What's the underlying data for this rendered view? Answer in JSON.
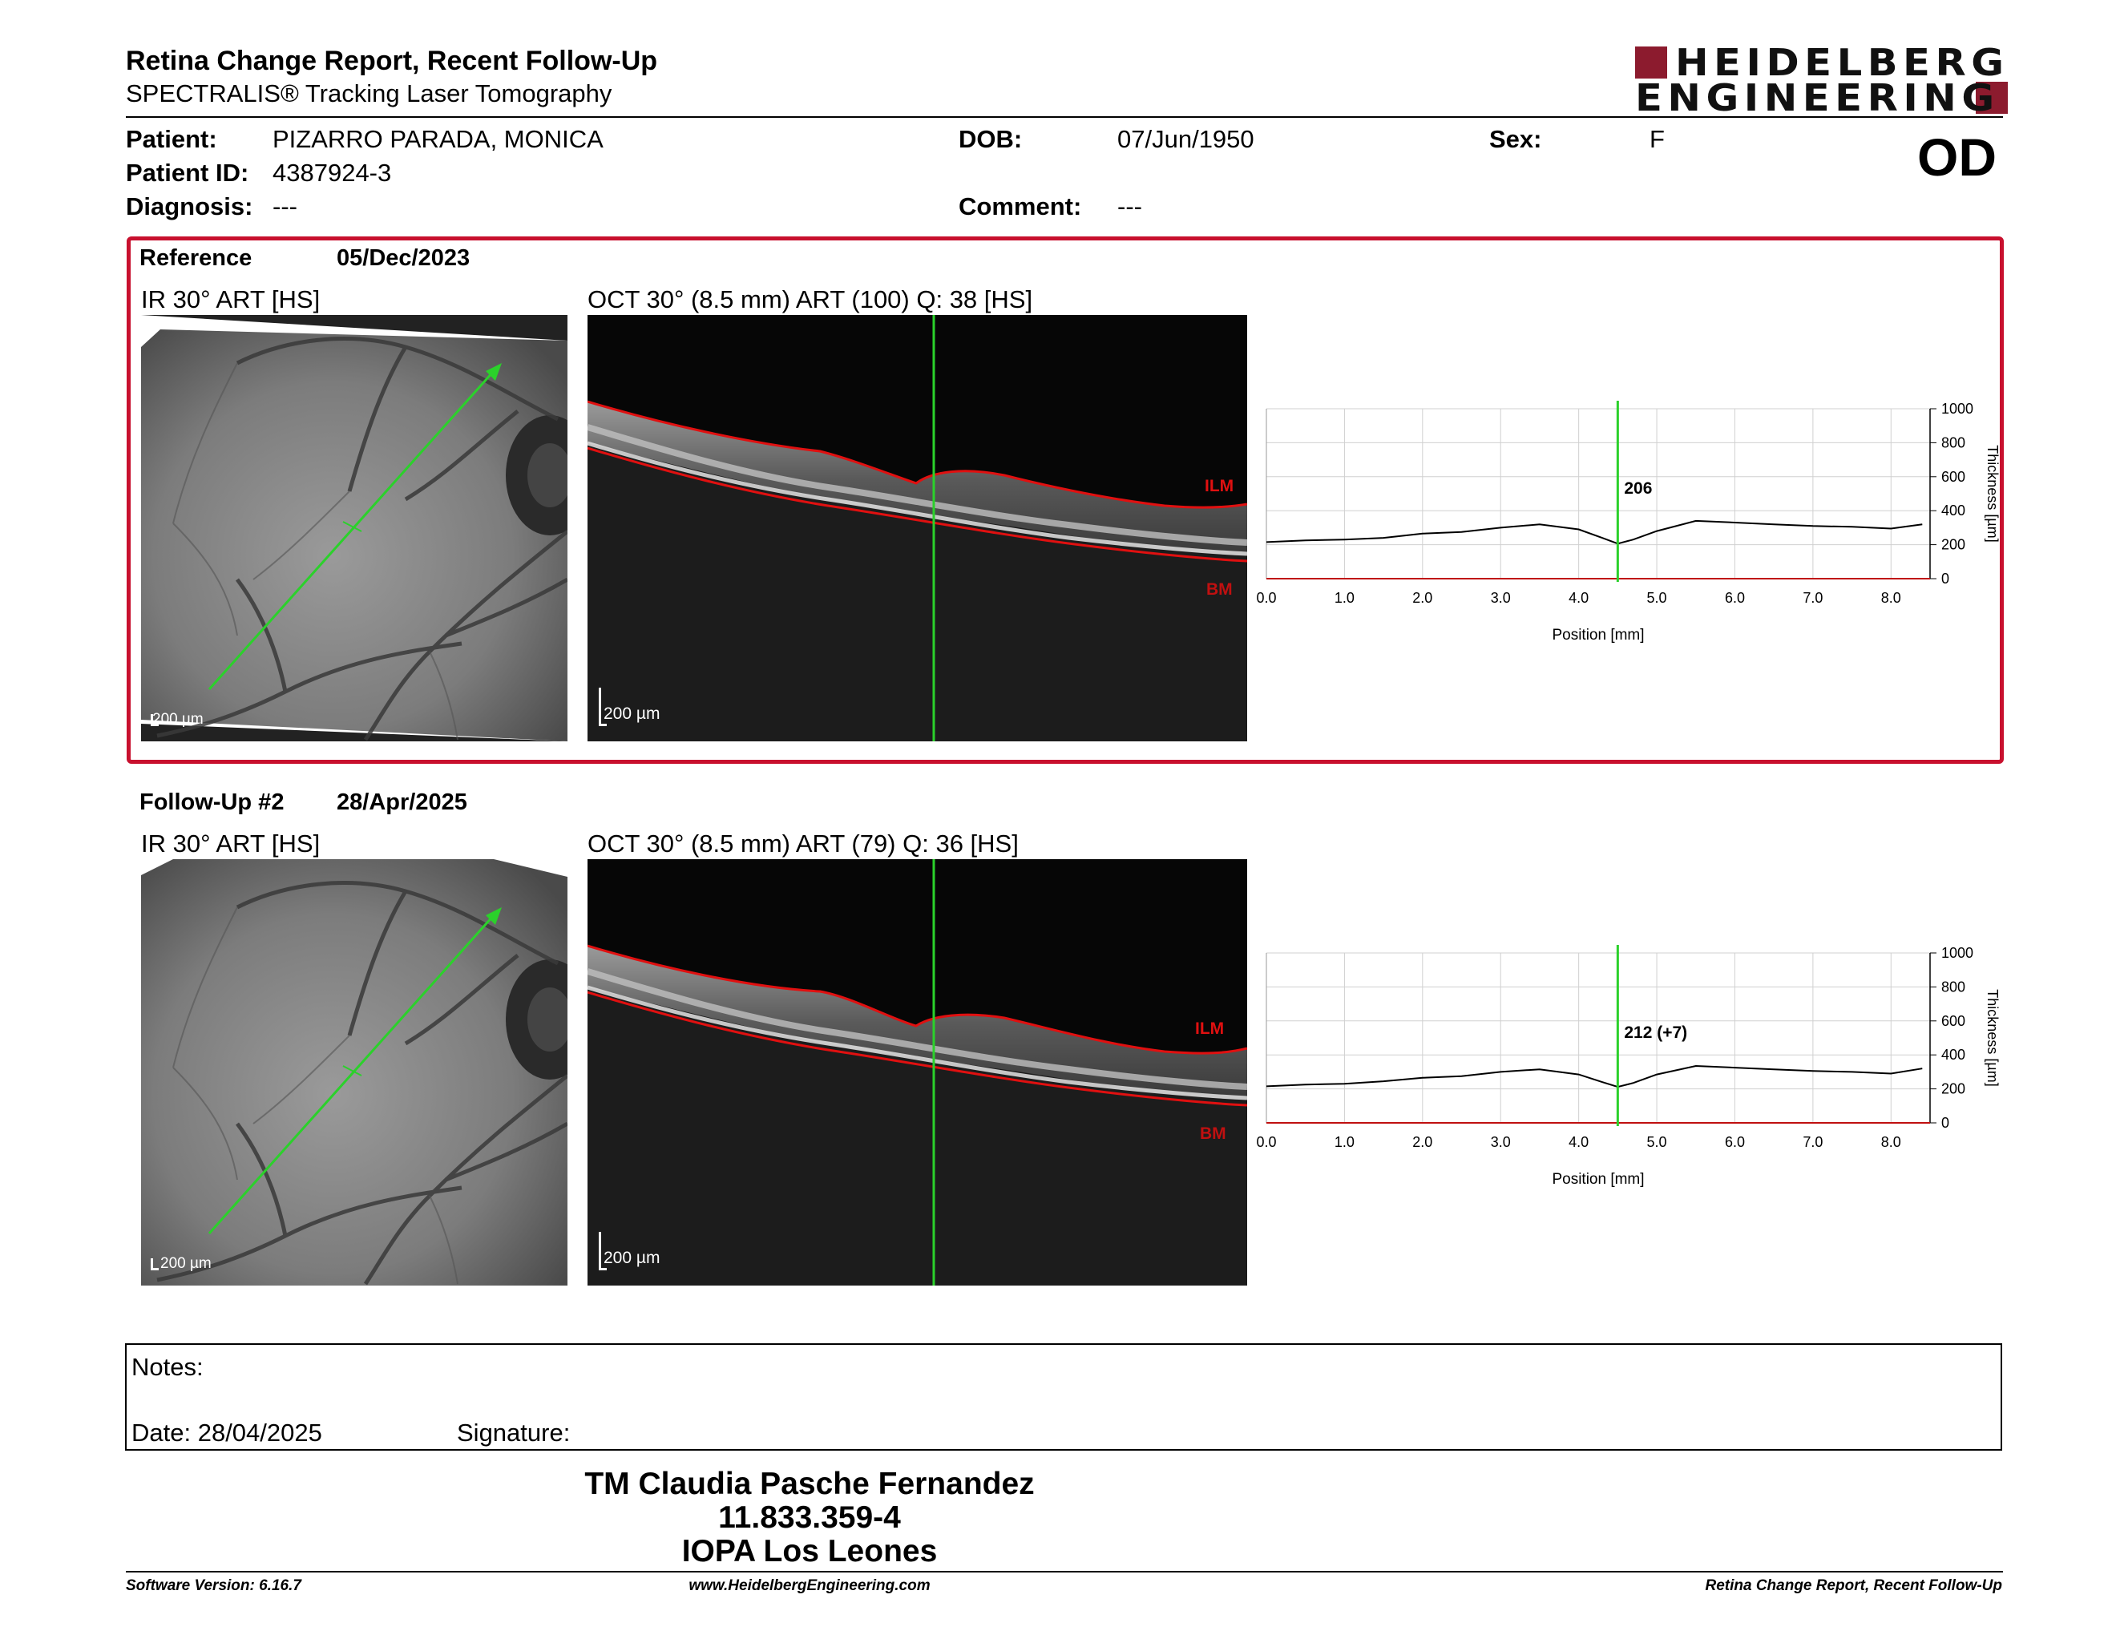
{
  "header": {
    "title": "Retina Change Report, Recent Follow-Up",
    "subtitle": "SPECTRALIS® Tracking Laser Tomography",
    "logo_line1": "HEIDELBERG",
    "logo_line2": "ENGINEERING",
    "brand_color": "#8c1b2e"
  },
  "patient": {
    "patient_label": "Patient:",
    "patient_value": "PIZARRO PARADA, MONICA",
    "id_label": "Patient ID:",
    "id_value": "4387924-3",
    "diagnosis_label": "Diagnosis:",
    "diagnosis_value": "---",
    "dob_label": "DOB:",
    "dob_value": "07/Jun/1950",
    "comment_label": "Comment:",
    "comment_value": "---",
    "sex_label": "Sex:",
    "sex_value": "F",
    "eye": "OD"
  },
  "reference": {
    "label": "Reference",
    "date": "05/Dec/2023",
    "ir_title": "IR 30° ART [HS]",
    "oct_title": "OCT 30° (8.5 mm) ART (100) Q: 38 [HS]",
    "ir_scale": "200 µm",
    "oct_scale": "200 µm",
    "ilm": "ILM",
    "bm": "BM",
    "marker_value": "206"
  },
  "followup": {
    "label": "Follow-Up #2",
    "date": "28/Apr/2025",
    "ir_title": "IR 30° ART [HS]",
    "oct_title": "OCT 30° (8.5 mm) ART (79) Q: 36 [HS]",
    "ir_scale": "200 µm",
    "oct_scale": "200 µm",
    "ilm": "ILM",
    "bm": "BM",
    "marker_value": "212 (+7)"
  },
  "chart_data": [
    {
      "type": "line",
      "xlabel": "Position [mm]",
      "ylabel": "Thickness [µm]",
      "xlim": [
        0,
        8.5
      ],
      "ylim": [
        0,
        1000
      ],
      "x_ticks": [
        "0.0",
        "1.0",
        "2.0",
        "3.0",
        "4.0",
        "5.0",
        "6.0",
        "7.0",
        "8.0"
      ],
      "y_ticks": [
        "0",
        "200",
        "400",
        "600",
        "800",
        "1000"
      ],
      "grid": true,
      "marker_x": 4.5,
      "marker_label": "206",
      "x": [
        0.0,
        0.5,
        1.0,
        1.5,
        2.0,
        2.5,
        3.0,
        3.5,
        4.0,
        4.3,
        4.5,
        4.7,
        5.0,
        5.5,
        6.0,
        6.5,
        7.0,
        7.5,
        8.0,
        8.4
      ],
      "values": [
        215,
        225,
        230,
        240,
        265,
        275,
        300,
        320,
        290,
        240,
        206,
        230,
        280,
        340,
        330,
        320,
        310,
        305,
        295,
        320
      ]
    },
    {
      "type": "line",
      "xlabel": "Position [mm]",
      "ylabel": "Thickness [µm]",
      "xlim": [
        0,
        8.5
      ],
      "ylim": [
        0,
        1000
      ],
      "x_ticks": [
        "0.0",
        "1.0",
        "2.0",
        "3.0",
        "4.0",
        "5.0",
        "6.0",
        "7.0",
        "8.0"
      ],
      "y_ticks": [
        "0",
        "200",
        "400",
        "600",
        "800",
        "1000"
      ],
      "grid": true,
      "marker_x": 4.5,
      "marker_label": "212 (+7)",
      "x": [
        0.0,
        0.5,
        1.0,
        1.5,
        2.0,
        2.5,
        3.0,
        3.5,
        4.0,
        4.3,
        4.5,
        4.7,
        5.0,
        5.5,
        6.0,
        6.5,
        7.0,
        7.5,
        8.0,
        8.4
      ],
      "values": [
        215,
        225,
        230,
        245,
        265,
        275,
        300,
        315,
        285,
        240,
        212,
        235,
        285,
        335,
        325,
        315,
        305,
        300,
        290,
        320
      ]
    }
  ],
  "notes": {
    "notes_label": "Notes:",
    "date_label": "Date: 28/04/2025",
    "signature_label": "Signature:"
  },
  "signature": {
    "name": "TM Claudia Pasche Fernandez",
    "id": "11.833.359-4",
    "org": "IOPA Los Leones"
  },
  "footer": {
    "software": "Software Version: 6.16.7",
    "website": "www.HeidelbergEngineering.com",
    "report": "Retina Change Report, Recent Follow-Up"
  }
}
